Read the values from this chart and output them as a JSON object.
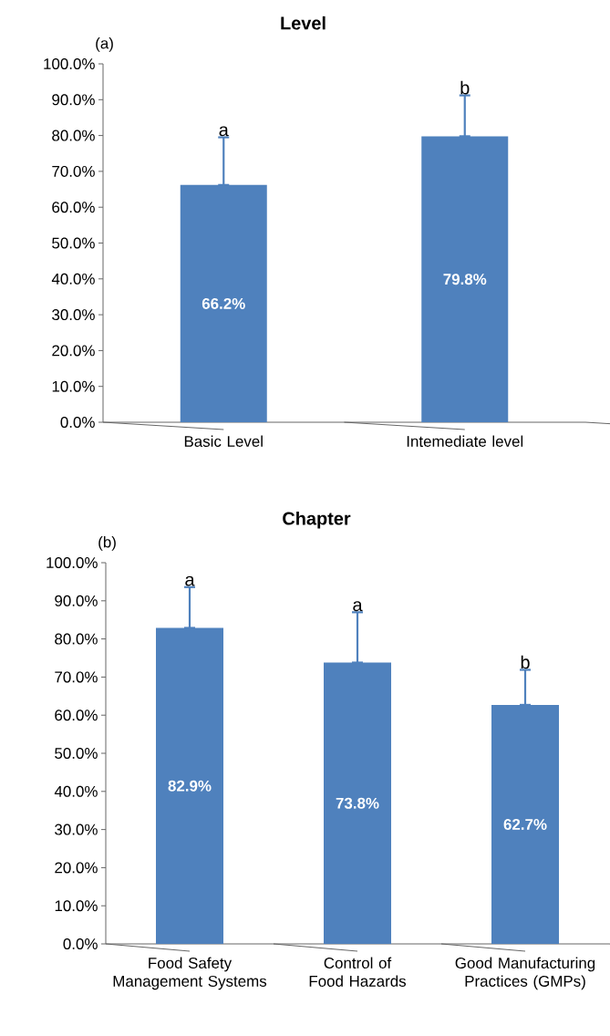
{
  "chart_data": [
    {
      "type": "bar",
      "title": "Level",
      "categories": [
        "Basic Level",
        "Intemediate level"
      ],
      "values": [
        66.2,
        79.8
      ],
      "value_labels": [
        "66.2%",
        "79.8%"
      ],
      "errors": [
        [
          66.2,
          79.5
        ],
        [
          79.8,
          91.2
        ]
      ],
      "color": "#4f81bd",
      "ylim": [
        0,
        100
      ],
      "yticks": [
        {
          "value": 0,
          "label": "0.0%"
        },
        {
          "value": 10,
          "label": "10.0%"
        },
        {
          "value": 20,
          "label": "20.0%"
        },
        {
          "value": 30,
          "label": "30.0%"
        },
        {
          "value": 40,
          "label": "40.0%"
        },
        {
          "value": 50,
          "label": "50.0%"
        },
        {
          "value": 60,
          "label": "60.0%"
        },
        {
          "value": 70,
          "label": "70.0%"
        },
        {
          "value": 80,
          "label": "80.0%"
        },
        {
          "value": 90,
          "label": "90.0%"
        },
        {
          "value": 100,
          "label": "100.0%"
        }
      ],
      "annotations": [
        "(a)",
        {
          "text": "a",
          "x": "Basic Level",
          "y": 79.5
        },
        {
          "text": "b",
          "x": "Intemediate level",
          "y": 91.2
        }
      ]
    },
    {
      "type": "bar",
      "title": "Chapter",
      "categories": [
        "Food Safety Management Systems",
        "Control of Food Hazards",
        "Good Manufacturing Practices (GMPs)"
      ],
      "values": [
        82.9,
        73.8,
        62.7
      ],
      "value_labels": [
        "82.9%",
        "73.8%",
        "62.7%"
      ],
      "errors": [
        [
          82.9,
          93.6
        ],
        [
          73.8,
          87.0
        ],
        [
          62.7,
          71.9
        ]
      ],
      "color": "#4f81bd",
      "ylim": [
        0,
        100
      ],
      "yticks": [
        {
          "value": 0,
          "label": "0.0%"
        },
        {
          "value": 10,
          "label": "10.0%"
        },
        {
          "value": 20,
          "label": "20.0%"
        },
        {
          "value": 30,
          "label": "30.0%"
        },
        {
          "value": 40,
          "label": "40.0%"
        },
        {
          "value": 50,
          "label": "50.0%"
        },
        {
          "value": 60,
          "label": "60.0%"
        },
        {
          "value": 70,
          "label": "70.0%"
        },
        {
          "value": 80,
          "label": "80.0%"
        },
        {
          "value": 90,
          "label": "90.0%"
        },
        {
          "value": 100,
          "label": "100.0%"
        }
      ],
      "annotations": [
        "(b)",
        {
          "text": "a",
          "x": "Food Safety Management Systems",
          "y": 93.6
        },
        {
          "text": "a",
          "x": "Control of Food Hazards",
          "y": 87.0
        },
        {
          "text": "b",
          "x": "Good Manufacturing Practices (GMPs)",
          "y": 71.9
        }
      ]
    }
  ]
}
